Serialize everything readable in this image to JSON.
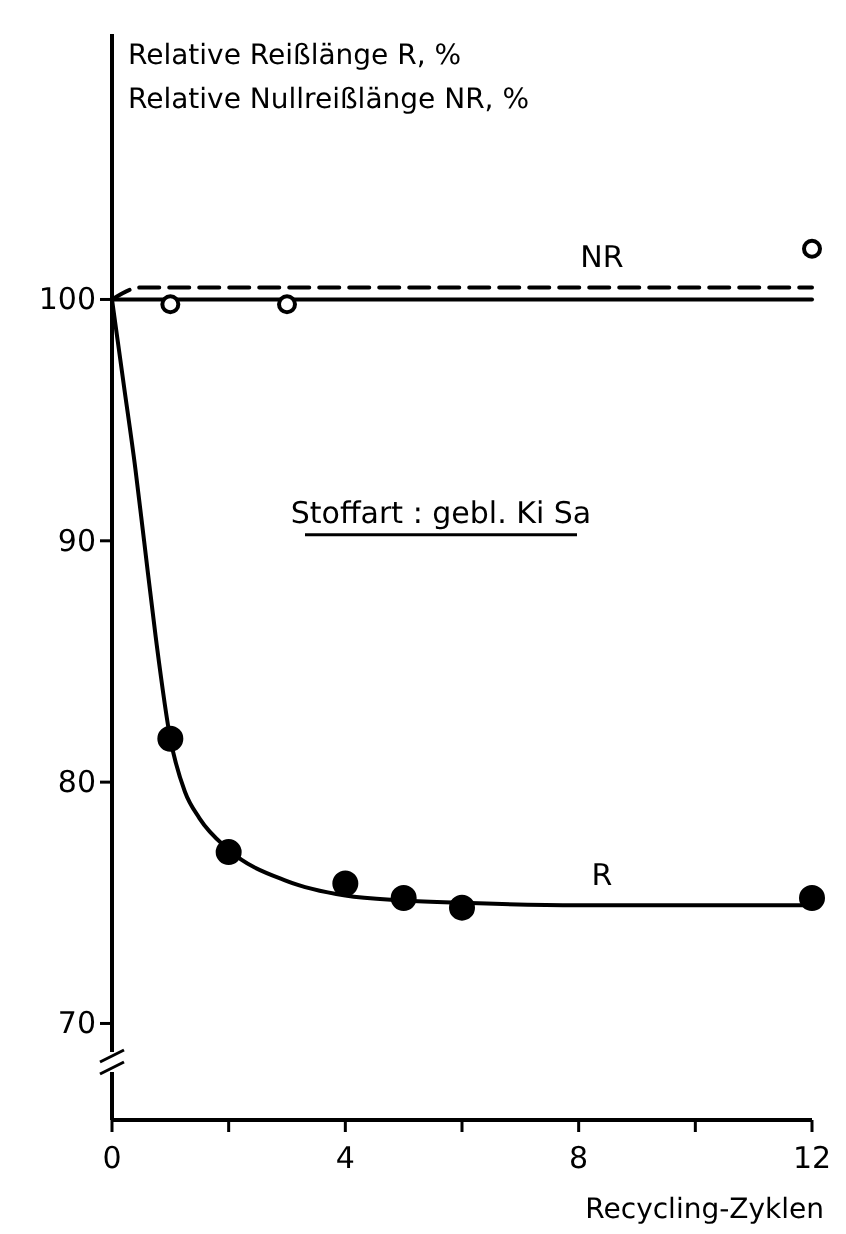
{
  "chart_data": {
    "type": "line",
    "ylabel": "Relative Reißlänge R, %\nRelative Nullreißlänge NR, %",
    "xlabel": "Recycling-Zyklen",
    "xlim": [
      0,
      12
    ],
    "xticks": [
      0,
      {
        "value": 2,
        "label": null
      },
      4,
      {
        "value": 6,
        "label": null
      },
      8,
      {
        "value": 10,
        "label": null
      },
      12
    ],
    "ylim": [
      66,
      111
    ],
    "yticks": [
      70,
      80,
      90,
      100
    ],
    "grid": false,
    "legend": false,
    "annotations": [
      "Stoffart : gebl. Ki Sa"
    ],
    "series": [
      {
        "name": "R",
        "color": "#000000",
        "line_style": "solid",
        "marker": "none",
        "x": [
          0,
          0.2,
          0.4,
          0.55,
          0.75,
          1,
          1.25,
          1.5,
          2,
          3,
          4,
          5,
          6,
          8,
          12
        ],
        "values": [
          100,
          96.5,
          93,
          90,
          86,
          81.8,
          79.6,
          78.5,
          77.2,
          75.9,
          75.3,
          75.1,
          75,
          74.9,
          74.9
        ]
      },
      {
        "name": "NR",
        "color": "#000000",
        "line_style": "dashed",
        "marker": "none",
        "x": [
          0,
          0.5,
          12
        ],
        "values": [
          100,
          100.5,
          100.5
        ]
      },
      {
        "color": "#000000",
        "line_style": "solid",
        "marker": "none",
        "x": [
          0,
          12
        ],
        "values": [
          100,
          100
        ]
      },
      {
        "type": "scatter",
        "color": "#000000",
        "marker": "circle",
        "x": [
          1,
          2,
          4,
          5,
          6,
          12
        ],
        "values": [
          81.8,
          77.1,
          75.8,
          75.2,
          74.8,
          75.2
        ]
      },
      {
        "type": "scatter",
        "color": "#ffffff",
        "marker": "circle",
        "x": [
          1,
          3,
          12
        ],
        "values": [
          99.8,
          99.8,
          102.1
        ]
      }
    ]
  }
}
